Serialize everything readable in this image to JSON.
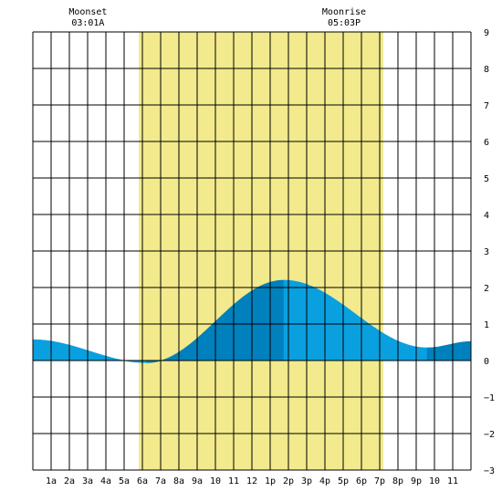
{
  "chart_data": {
    "type": "area",
    "title": "",
    "xlabel": "",
    "ylabel": "",
    "xlim": [
      0,
      24
    ],
    "ylim": [
      -3,
      9
    ],
    "grid": true,
    "x_tick_labels": [
      "1a",
      "2a",
      "3a",
      "4a",
      "5a",
      "6a",
      "7a",
      "8a",
      "9a",
      "10",
      "11",
      "12",
      "1p",
      "2p",
      "3p",
      "4p",
      "5p",
      "6p",
      "7p",
      "8p",
      "9p",
      "10",
      "11"
    ],
    "x_tick_hours": [
      1,
      2,
      3,
      4,
      5,
      6,
      7,
      8,
      9,
      10,
      11,
      12,
      13,
      14,
      15,
      16,
      17,
      18,
      19,
      20,
      21,
      22,
      23
    ],
    "y_ticks": [
      -3,
      -2,
      -1,
      0,
      1,
      2,
      3,
      4,
      5,
      6,
      7,
      8,
      9
    ],
    "daylight": {
      "start_hour": 5.8,
      "end_hour": 19.2
    },
    "moon_events": [
      {
        "name": "Moonset",
        "time": "03:01A",
        "hour": 3.02
      },
      {
        "name": "Moonrise",
        "time": "05:03P",
        "hour": 17.05
      }
    ],
    "tide_extrema": [
      {
        "hour": 0.0,
        "height": 0.57
      },
      {
        "hour": 6.25,
        "height": -0.06
      },
      {
        "hour": 13.75,
        "height": 2.2
      },
      {
        "hour": 21.6,
        "height": 0.35
      },
      {
        "hour": 24.0,
        "height": 0.52
      }
    ],
    "colors": {
      "daylight": "#f2ea8c",
      "tide_light": "#0aa0e0",
      "tide_dark": "#0080bc",
      "grid": "#000000"
    }
  }
}
